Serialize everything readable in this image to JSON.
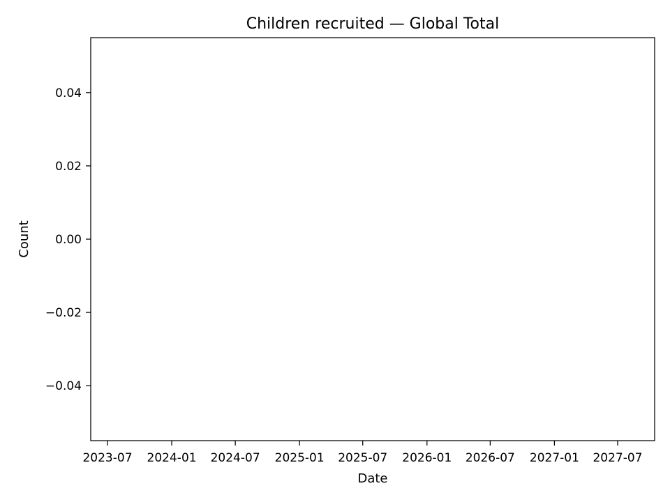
{
  "chart_data": {
    "type": "line",
    "title": "Children recruited — Global Total",
    "xlabel": "Date",
    "ylabel": "Count",
    "x_ticks": [
      "2023-07",
      "2024-01",
      "2024-07",
      "2025-01",
      "2025-07",
      "2026-01",
      "2026-07",
      "2027-01",
      "2027-07"
    ],
    "y_ticks": [
      "0.04",
      "0.02",
      "0.00",
      "−0.02",
      "−0.04"
    ],
    "y_tick_values": [
      0.04,
      0.02,
      0.0,
      -0.02,
      -0.04
    ],
    "ylim": [
      -0.055,
      0.055
    ],
    "xlim": [
      "2023-05-14",
      "2027-10-15"
    ],
    "series": [],
    "grid": false,
    "legend": "none"
  }
}
